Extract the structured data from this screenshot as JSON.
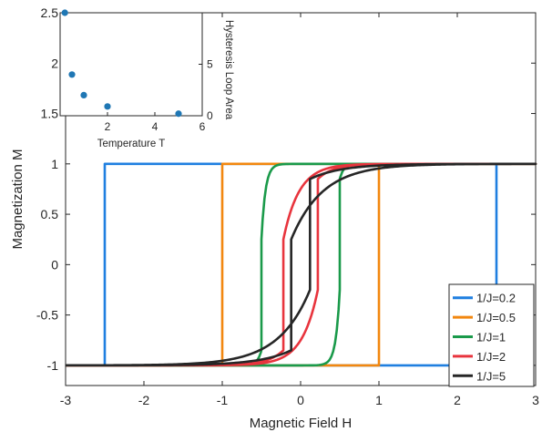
{
  "chart_data": [
    {
      "type": "line",
      "xlabel": "Magnetic Field H",
      "ylabel": "Magnetization M",
      "xlim": [
        -3,
        3
      ],
      "ylim": [
        -1.2,
        2.5
      ],
      "xticks": [
        -3,
        -2,
        -1,
        0,
        1,
        2,
        3
      ],
      "xtick_labels": [
        "-3",
        "-2",
        "-1",
        "0",
        "1",
        "2",
        "3"
      ],
      "yticks": [
        -1,
        -0.5,
        0,
        0.5,
        1,
        1.5,
        2,
        2.5
      ],
      "ytick_labels": [
        "-1",
        "-0.5",
        "0",
        "0.5",
        "1",
        "1.5",
        "2",
        "2.5"
      ],
      "grid": false,
      "legend_position": "bottom-right",
      "colors": [
        "#1f7fe0",
        "#f2870f",
        "#1a9a4a",
        "#e8343d",
        "#262626"
      ],
      "series": [
        {
          "name": "1/J=0.2",
          "color": "#1f7fe0",
          "switch_field": 2.5,
          "tail_width": 0
        },
        {
          "name": "1/J=0.5",
          "color": "#f2870f",
          "switch_field": 1.0,
          "tail_width": 0
        },
        {
          "name": "1/J=1",
          "color": "#1a9a4a",
          "switch_field": 0.5,
          "tail_width": 0.05
        },
        {
          "name": "1/J=2",
          "color": "#e8343d",
          "switch_field": 0.22,
          "tail_width": 0.2
        },
        {
          "name": "1/J=5",
          "color": "#262626",
          "switch_field": 0.12,
          "tail_width": 0.4
        }
      ]
    },
    {
      "type": "scatter",
      "xlabel": "Temperature T",
      "ylabel": "Hysteresis Loop Area",
      "xlim": [
        0,
        6
      ],
      "ylim": [
        0,
        10
      ],
      "xticks": [
        2,
        4,
        6
      ],
      "xtick_labels": [
        "2",
        "4",
        "6"
      ],
      "yticks": [
        0,
        5
      ],
      "ytick_labels": [
        "0",
        "5"
      ],
      "y_axis_side": "right",
      "color": "#1f77b4",
      "points": [
        {
          "x": 0.2,
          "y": 10.0
        },
        {
          "x": 0.5,
          "y": 4.0
        },
        {
          "x": 1.0,
          "y": 2.0
        },
        {
          "x": 2.0,
          "y": 0.9
        },
        {
          "x": 5.0,
          "y": 0.2
        }
      ]
    }
  ]
}
